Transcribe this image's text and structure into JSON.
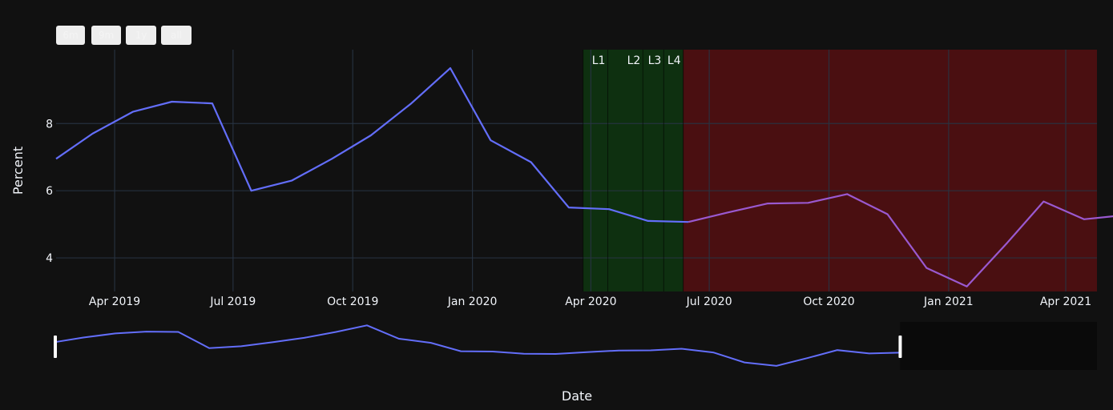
{
  "range_selector": {
    "buttons": [
      {
        "label": "6m"
      },
      {
        "label": "9m"
      },
      {
        "label": "1y"
      },
      {
        "label": "all"
      }
    ]
  },
  "colors": {
    "background": "#111111",
    "grid": "#283442",
    "line_primary": "#636efa",
    "line_secondary": "#9a59d0",
    "lockdown_band": "#0e3010",
    "post_band": "#4a0f11",
    "text": "#f2f5fa",
    "range_slider_mask": "#0a0a0a",
    "range_slider_handle": "#ffffff"
  },
  "chart_data": {
    "type": "line",
    "xlabel": "Date",
    "ylabel": "Percent",
    "ylim": [
      3.0,
      10.2
    ],
    "yticks": [
      4,
      6,
      8
    ],
    "xticks": [
      {
        "date": "2019-04-01",
        "label": "Apr 2019"
      },
      {
        "date": "2019-07-01",
        "label": "Jul 2019"
      },
      {
        "date": "2019-10-01",
        "label": "Oct 2019"
      },
      {
        "date": "2020-01-01",
        "label": "Jan 2020"
      },
      {
        "date": "2020-04-01",
        "label": "Apr 2020"
      },
      {
        "date": "2020-07-01",
        "label": "Jul 2020"
      },
      {
        "date": "2020-10-01",
        "label": "Oct 2020"
      },
      {
        "date": "2021-01-01",
        "label": "Jan 2021"
      },
      {
        "date": "2021-04-01",
        "label": "Apr 2021"
      }
    ],
    "xlim": [
      "2019-02-15",
      "2021-04-25"
    ],
    "series": [
      {
        "color": "#636efa",
        "x": [
          "2019-02-15",
          "2019-03-15",
          "2019-04-15",
          "2019-05-15",
          "2019-06-15",
          "2019-07-15",
          "2019-08-15",
          "2019-09-15",
          "2019-10-15",
          "2019-11-15",
          "2019-12-15",
          "2020-01-15",
          "2020-02-15",
          "2020-03-15",
          "2020-04-15",
          "2020-05-15",
          "2020-06-15"
        ],
        "y": [
          6.95,
          7.7,
          8.35,
          8.65,
          8.6,
          6.0,
          6.3,
          6.95,
          7.65,
          8.6,
          9.65,
          7.5,
          6.85,
          5.5,
          5.45,
          5.1,
          5.07
        ]
      },
      {
        "color": "#9a59d0",
        "x": [
          "2020-06-15",
          "2020-07-15",
          "2020-08-15",
          "2020-09-15",
          "2020-10-15",
          "2020-11-15",
          "2020-12-15",
          "2021-01-15",
          "2021-02-15",
          "2021-03-15",
          "2021-04-15",
          "2021-05-15"
        ],
        "y": [
          5.07,
          5.35,
          5.62,
          5.64,
          5.9,
          5.3,
          3.7,
          3.15,
          4.45,
          5.68,
          5.15,
          5.27
        ]
      }
    ],
    "bands": [
      {
        "start": "2020-03-26",
        "end": "2020-06-11",
        "color": "#0e3010"
      },
      {
        "start": "2020-06-11",
        "end": "2021-04-25",
        "color": "#4a0f11"
      }
    ],
    "band_lines": [
      {
        "date": "2020-03-26"
      },
      {
        "date": "2020-04-14",
        "label": "L1"
      },
      {
        "date": "2020-05-11",
        "label": "L2"
      },
      {
        "date": "2020-05-27",
        "label": "L3"
      },
      {
        "date": "2020-06-11",
        "label": "L4"
      }
    ],
    "range_slider": {
      "window_start": "2019-02-15",
      "window_end": "2020-11-25"
    }
  }
}
